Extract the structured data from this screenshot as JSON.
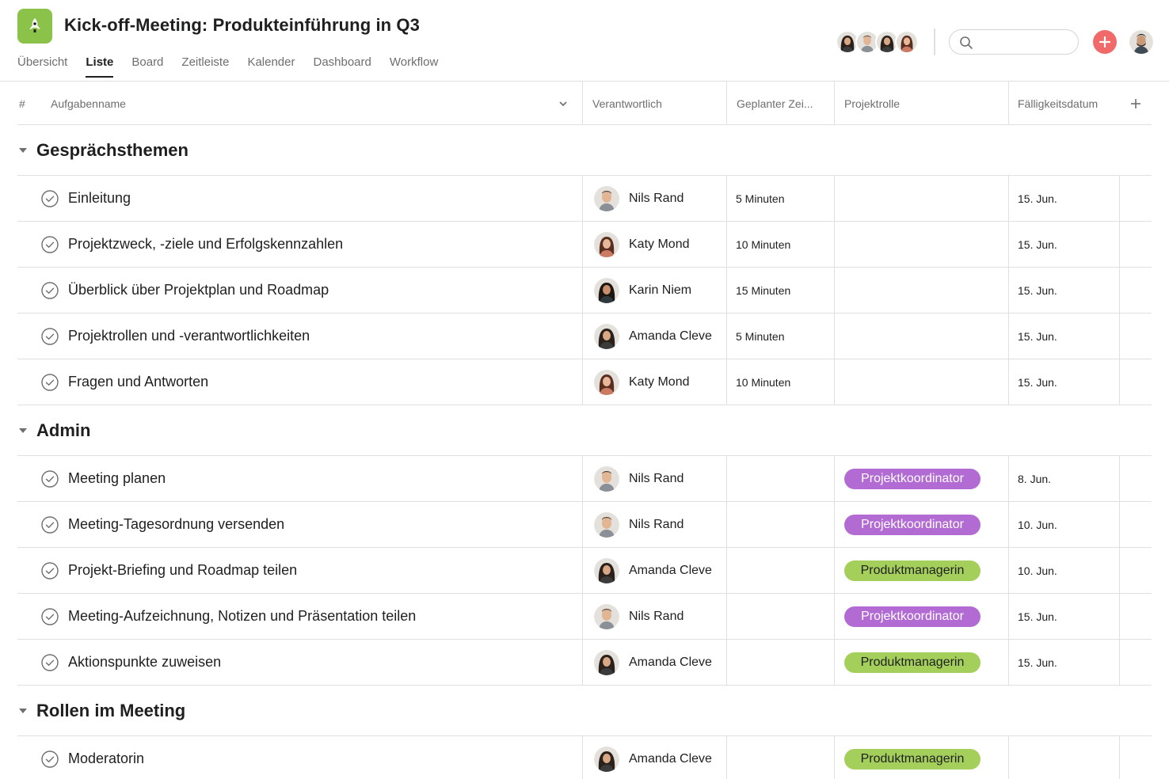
{
  "header": {
    "title": "Kick-off-Meeting: Produkteinführung in Q3",
    "project_icon": "rocket-icon",
    "project_color": "#8bc34a",
    "tabs": [
      {
        "label": "Übersicht",
        "active": false
      },
      {
        "label": "Liste",
        "active": true
      },
      {
        "label": "Board",
        "active": false
      },
      {
        "label": "Zeitleiste",
        "active": false
      },
      {
        "label": "Kalender",
        "active": false
      },
      {
        "label": "Dashboard",
        "active": false
      },
      {
        "label": "Workflow",
        "active": false
      }
    ],
    "search": {
      "placeholder": "",
      "value": ""
    },
    "add_button_color": "#f06a6a"
  },
  "columns": {
    "number": "#",
    "task": "Aufgabenname",
    "assignee": "Verantwortlich",
    "time": "Geplanter Zei...",
    "role": "Projektrolle",
    "date": "Fälligkeitsdatum"
  },
  "role_colors": {
    "Projektkoordinator": {
      "bg": "#b36bd4",
      "fg": "#ffffff"
    },
    "Produktmanagerin": {
      "bg": "#a5cf5b",
      "fg": "#1e1f21"
    }
  },
  "sections": [
    {
      "title": "Gesprächsthemen",
      "tasks": [
        {
          "name": "Einleitung",
          "assignee": "Nils Rand",
          "time": "5 Minuten",
          "role": "",
          "date": "15. Jun."
        },
        {
          "name": "Projektzweck, -ziele und Erfolgskennzahlen",
          "assignee": "Katy Mond",
          "time": "10 Minuten",
          "role": "",
          "date": "15. Jun."
        },
        {
          "name": "Überblick über Projektplan und Roadmap",
          "assignee": "Karin Niem",
          "time": "15 Minuten",
          "role": "",
          "date": "15. Jun."
        },
        {
          "name": "Projektrollen und -verantwortlichkeiten",
          "assignee": "Amanda Cleve",
          "time": "5 Minuten",
          "role": "",
          "date": "15. Jun."
        },
        {
          "name": "Fragen und Antworten",
          "assignee": "Katy Mond",
          "time": "10 Minuten",
          "role": "",
          "date": "15. Jun."
        }
      ]
    },
    {
      "title": "Admin",
      "tasks": [
        {
          "name": "Meeting planen",
          "assignee": "Nils Rand",
          "time": "",
          "role": "Projektkoordinator",
          "date": "8. Jun."
        },
        {
          "name": "Meeting-Tagesordnung versenden",
          "assignee": "Nils Rand",
          "time": "",
          "role": "Projektkoordinator",
          "date": "10. Jun."
        },
        {
          "name": "Projekt-Briefing und Roadmap teilen",
          "assignee": "Amanda Cleve",
          "time": "",
          "role": "Produktmanagerin",
          "date": "10. Jun."
        },
        {
          "name": "Meeting-Aufzeichnung, Notizen und Präsentation teilen",
          "assignee": "Nils Rand",
          "time": "",
          "role": "Projektkoordinator",
          "date": "15. Jun."
        },
        {
          "name": "Aktionspunkte zuweisen",
          "assignee": "Amanda Cleve",
          "time": "",
          "role": "Produktmanagerin",
          "date": "15. Jun."
        }
      ]
    },
    {
      "title": "Rollen im Meeting",
      "tasks": [
        {
          "name": "Moderatorin",
          "assignee": "Amanda Cleve",
          "time": "",
          "role": "Produktmanagerin",
          "date": ""
        }
      ]
    }
  ]
}
